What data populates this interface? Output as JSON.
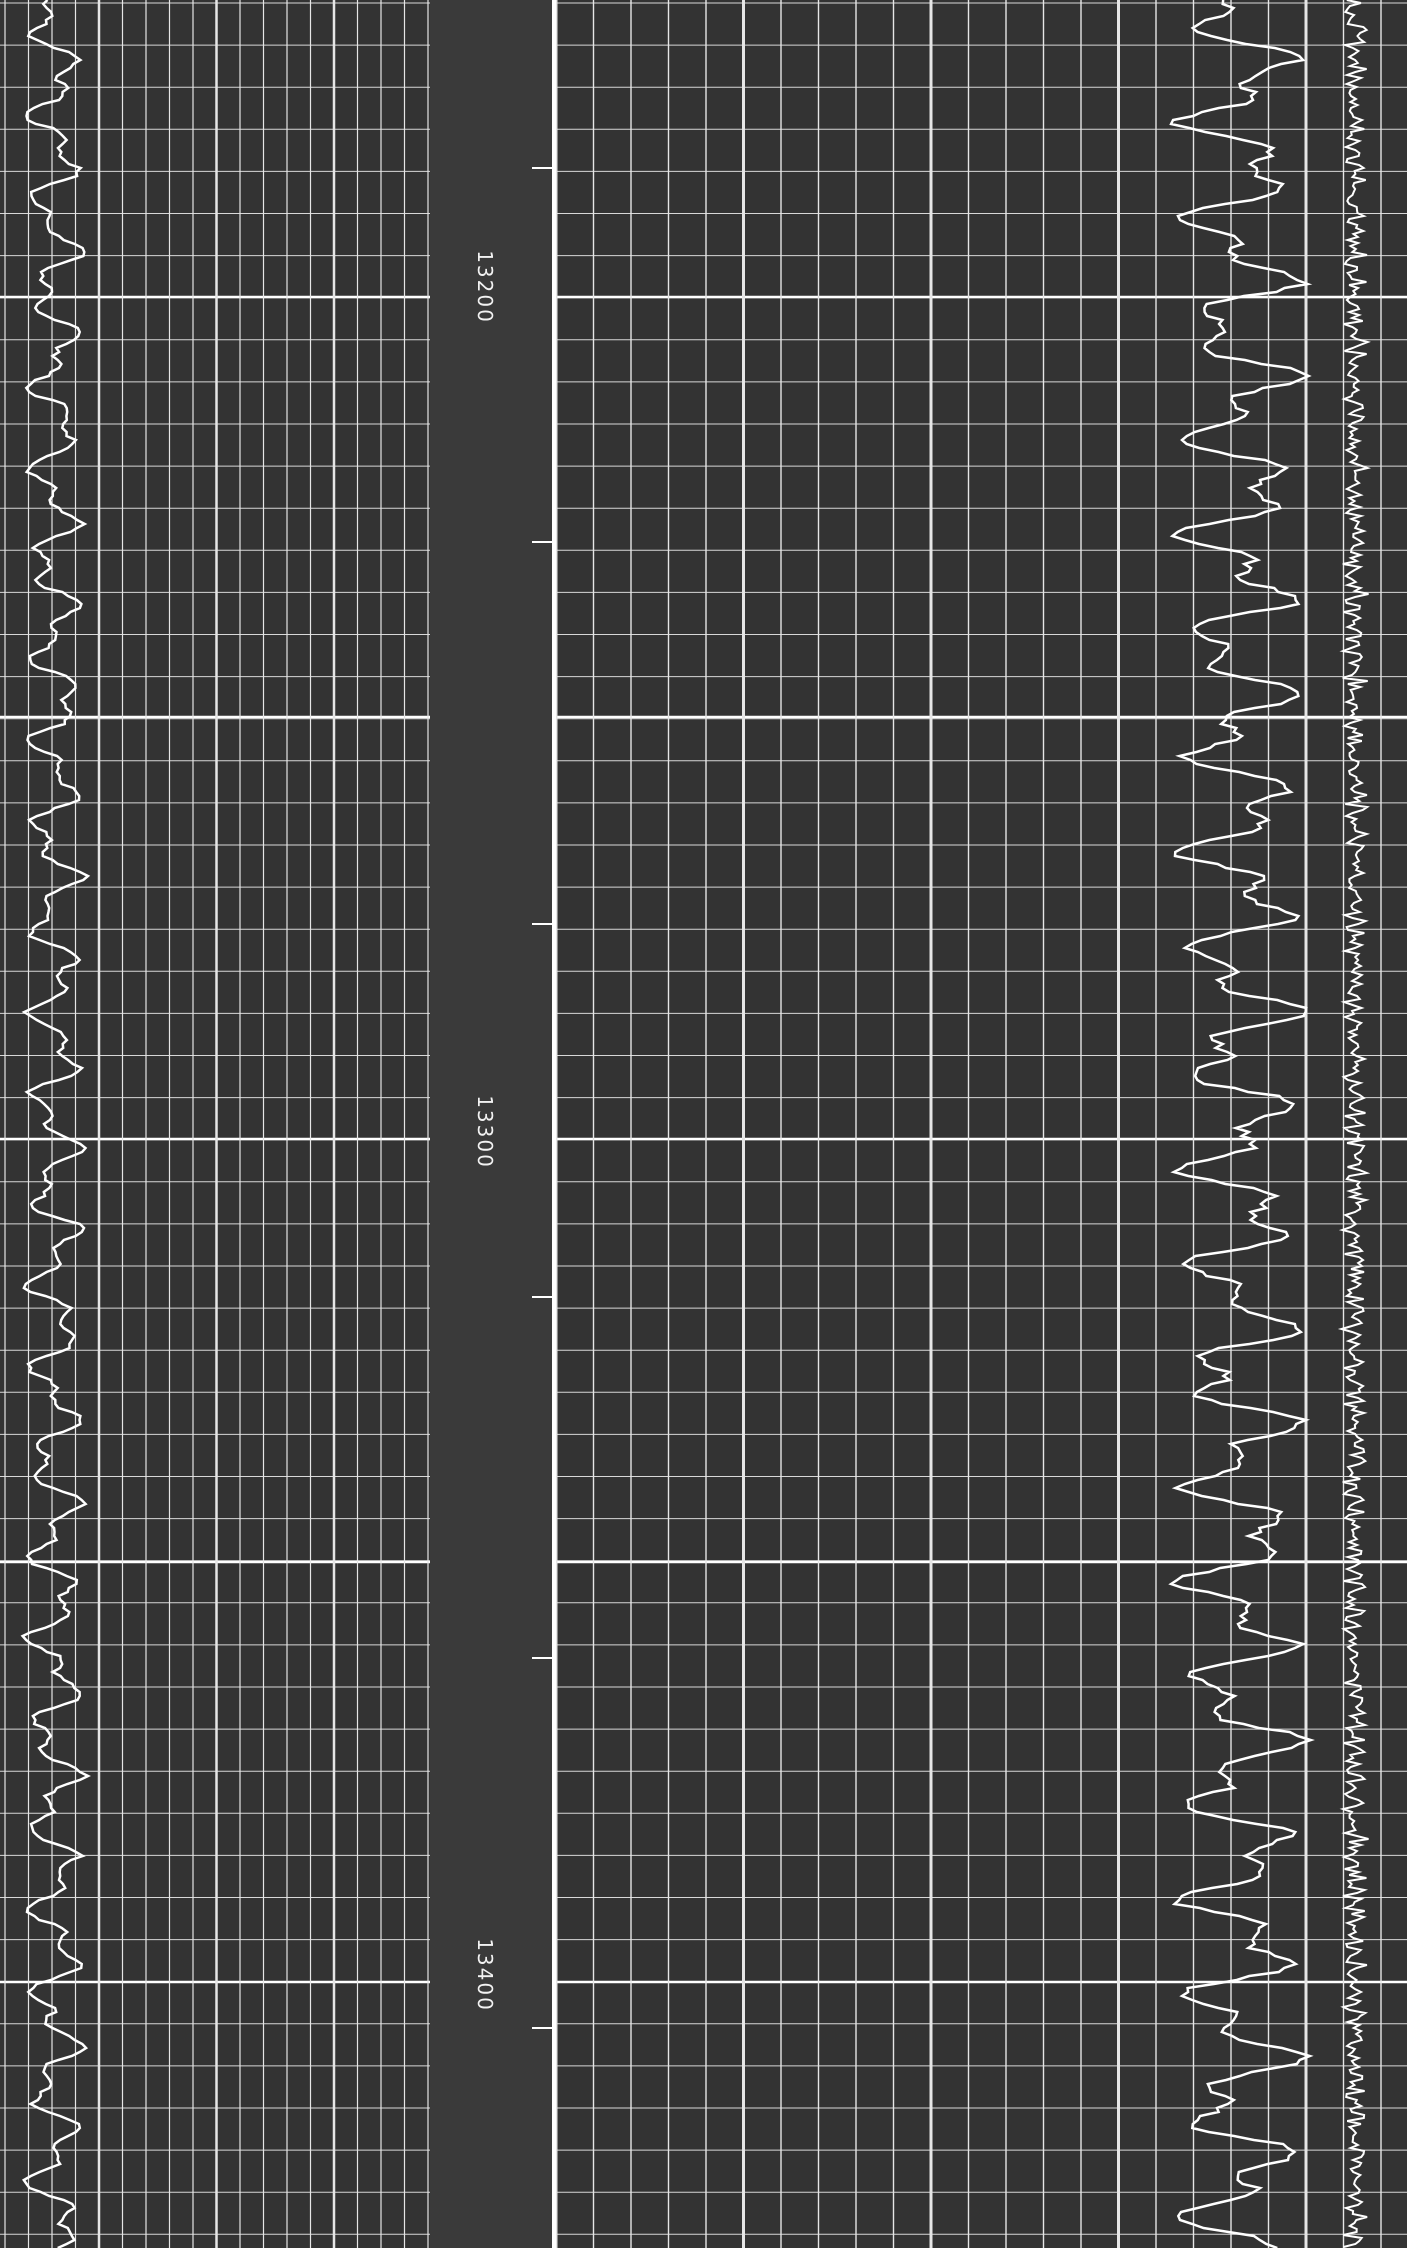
{
  "depth_labels": [
    "13200",
    "13300",
    "13400"
  ]
}
